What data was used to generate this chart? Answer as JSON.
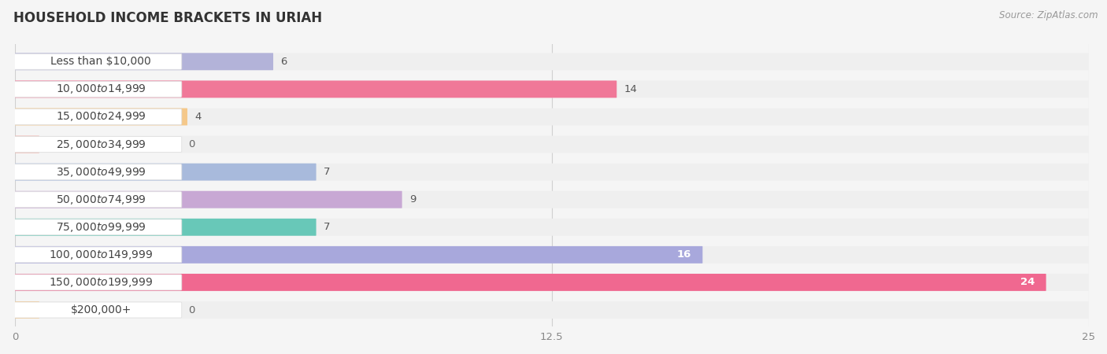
{
  "title": "HOUSEHOLD INCOME BRACKETS IN URIAH",
  "source": "Source: ZipAtlas.com",
  "categories": [
    "Less than $10,000",
    "$10,000 to $14,999",
    "$15,000 to $24,999",
    "$25,000 to $34,999",
    "$35,000 to $49,999",
    "$50,000 to $74,999",
    "$75,000 to $99,999",
    "$100,000 to $149,999",
    "$150,000 to $199,999",
    "$200,000+"
  ],
  "values": [
    6,
    14,
    4,
    0,
    7,
    9,
    7,
    16,
    24,
    0
  ],
  "bar_colors": [
    "#b3b3d9",
    "#f07898",
    "#f5c88a",
    "#f0a8a0",
    "#a8badc",
    "#c8a8d4",
    "#68c8b8",
    "#a8a8dc",
    "#f06890",
    "#f5c88a"
  ],
  "bar_bg_color": "#efefef",
  "xlim": [
    0,
    25
  ],
  "xticks": [
    0,
    12.5,
    25
  ],
  "background_color": "#f5f5f5",
  "title_fontsize": 12,
  "label_fontsize": 10,
  "value_fontsize": 9.5
}
